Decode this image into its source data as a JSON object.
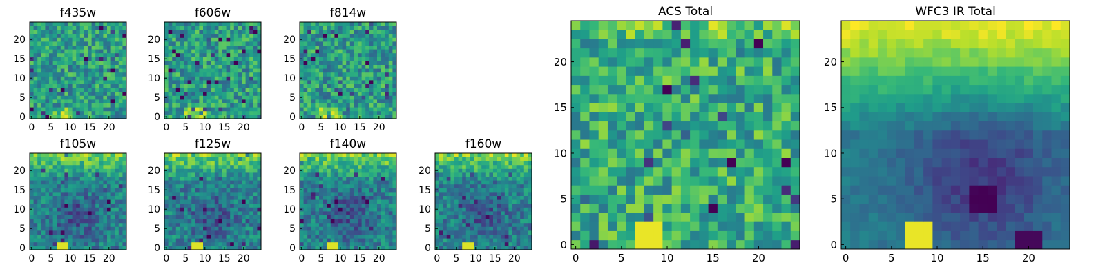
{
  "chart_data": [
    {
      "id": "f435w",
      "type": "heatmap",
      "title": "f435w",
      "field": "acs_noise",
      "grid": [
        25,
        25
      ],
      "xlim": [
        -0.5,
        24.5
      ],
      "ylim": [
        -0.5,
        24.5
      ],
      "xticks": [
        0,
        5,
        10,
        15,
        20
      ],
      "yticks": [
        0,
        5,
        10,
        15,
        20
      ],
      "colormap": "viridis"
    },
    {
      "id": "f606w",
      "type": "heatmap",
      "title": "f606w",
      "field": "acs_noise",
      "grid": [
        25,
        25
      ],
      "xlim": [
        -0.5,
        24.5
      ],
      "ylim": [
        -0.5,
        24.5
      ],
      "xticks": [
        0,
        5,
        10,
        15,
        20
      ],
      "yticks": [
        0,
        5,
        10,
        15,
        20
      ],
      "colormap": "viridis"
    },
    {
      "id": "f814w",
      "type": "heatmap",
      "title": "f814w",
      "field": "acs_noise",
      "grid": [
        25,
        25
      ],
      "xlim": [
        -0.5,
        24.5
      ],
      "ylim": [
        -0.5,
        24.5
      ],
      "xticks": [
        0,
        5,
        10,
        15,
        20
      ],
      "yticks": [
        0,
        5,
        10,
        15,
        20
      ],
      "colormap": "viridis"
    },
    {
      "id": "f105w",
      "type": "heatmap",
      "title": "f105w",
      "field": "ir_smooth",
      "grid": [
        25,
        25
      ],
      "xlim": [
        -0.5,
        24.5
      ],
      "ylim": [
        -0.5,
        24.5
      ],
      "xticks": [
        0,
        5,
        10,
        15,
        20
      ],
      "yticks": [
        0,
        5,
        10,
        15,
        20
      ],
      "colormap": "viridis"
    },
    {
      "id": "f125w",
      "type": "heatmap",
      "title": "f125w",
      "field": "ir_smooth",
      "grid": [
        25,
        25
      ],
      "xlim": [
        -0.5,
        24.5
      ],
      "ylim": [
        -0.5,
        24.5
      ],
      "xticks": [
        0,
        5,
        10,
        15,
        20
      ],
      "yticks": [
        0,
        5,
        10,
        15,
        20
      ],
      "colormap": "viridis"
    },
    {
      "id": "f140w",
      "type": "heatmap",
      "title": "f140w",
      "field": "ir_smooth",
      "grid": [
        25,
        25
      ],
      "xlim": [
        -0.5,
        24.5
      ],
      "ylim": [
        -0.5,
        24.5
      ],
      "xticks": [
        0,
        5,
        10,
        15,
        20
      ],
      "yticks": [
        0,
        5,
        10,
        15,
        20
      ],
      "colormap": "viridis"
    },
    {
      "id": "f160w",
      "type": "heatmap",
      "title": "f160w",
      "field": "ir_smooth",
      "grid": [
        25,
        25
      ],
      "xlim": [
        -0.5,
        24.5
      ],
      "ylim": [
        -0.5,
        24.5
      ],
      "xticks": [
        0,
        5,
        10,
        15,
        20
      ],
      "yticks": [
        0,
        5,
        10,
        15,
        20
      ],
      "colormap": "viridis"
    },
    {
      "id": "acs",
      "type": "heatmap",
      "title": "ACS Total",
      "field": "acs_blocky",
      "grid": [
        25,
        25
      ],
      "xlim": [
        -0.5,
        24.5
      ],
      "ylim": [
        -0.5,
        24.5
      ],
      "xticks": [
        0,
        5,
        10,
        15,
        20
      ],
      "yticks": [
        0,
        5,
        10,
        15,
        20
      ],
      "colormap": "viridis"
    },
    {
      "id": "wfc3",
      "type": "heatmap",
      "title": "WFC3 IR Total",
      "field": "ir_total",
      "grid": [
        25,
        25
      ],
      "xlim": [
        -0.5,
        24.5
      ],
      "ylim": [
        -0.5,
        24.5
      ],
      "xticks": [
        0,
        5,
        10,
        15,
        20
      ],
      "yticks": [
        0,
        5,
        10,
        15,
        20
      ],
      "colormap": "viridis"
    }
  ]
}
